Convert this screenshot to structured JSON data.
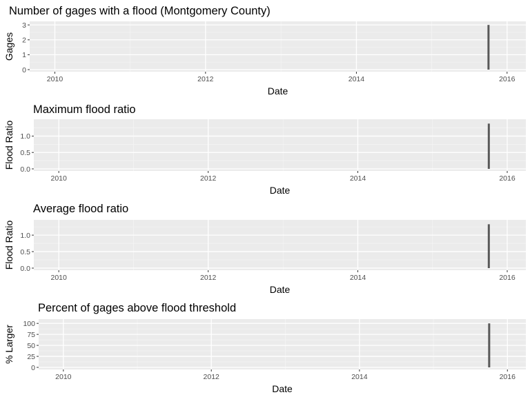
{
  "chart_data": [
    {
      "type": "bar",
      "title": "Number of gages with a flood (Montgomery County)",
      "xlabel": "Date",
      "ylabel": "Gages",
      "x_ticks": [
        "2010",
        "2012",
        "2014",
        "2016"
      ],
      "y_ticks": [
        "0",
        "1",
        "2",
        "3"
      ],
      "xlim": [
        "2009-09-01",
        "2016-04-01"
      ],
      "ylim": [
        0,
        3.1
      ],
      "grid": true,
      "background": "#ebebeb",
      "bar_color": "#595959",
      "x": [
        "2015-10-03"
      ],
      "values": [
        3
      ]
    },
    {
      "type": "bar",
      "title": "Maximum flood ratio",
      "xlabel": "Date",
      "ylabel": "Flood Ratio",
      "x_ticks": [
        "2010",
        "2012",
        "2014",
        "2016"
      ],
      "y_ticks": [
        "0.0",
        "0.5",
        "1.0"
      ],
      "xlim": [
        "2009-09-01",
        "2016-04-01"
      ],
      "ylim": [
        0,
        1.45
      ],
      "grid": true,
      "background": "#ebebeb",
      "bar_color": "#595959",
      "x": [
        "2015-10-03"
      ],
      "values": [
        1.38
      ]
    },
    {
      "type": "bar",
      "title": "Average flood ratio",
      "xlabel": "Date",
      "ylabel": "Flood Ratio",
      "x_ticks": [
        "2010",
        "2012",
        "2014",
        "2016"
      ],
      "y_ticks": [
        "0.0",
        "0.5",
        "1.0"
      ],
      "xlim": [
        "2009-09-01",
        "2016-04-01"
      ],
      "ylim": [
        0,
        1.4
      ],
      "grid": true,
      "background": "#ebebeb",
      "bar_color": "#595959",
      "x": [
        "2015-10-03"
      ],
      "values": [
        1.33
      ]
    },
    {
      "type": "bar",
      "title": "Percent of gages above flood threshold",
      "xlabel": "Date",
      "ylabel": "% Larger",
      "x_ticks": [
        "2010",
        "2012",
        "2014",
        "2016"
      ],
      "y_ticks": [
        "0",
        "25",
        "50",
        "75",
        "100"
      ],
      "xlim": [
        "2009-09-01",
        "2016-04-01"
      ],
      "ylim": [
        0,
        105
      ],
      "grid": true,
      "background": "#ebebeb",
      "bar_color": "#595959",
      "x": [
        "2015-10-03"
      ],
      "values": [
        100
      ]
    }
  ]
}
